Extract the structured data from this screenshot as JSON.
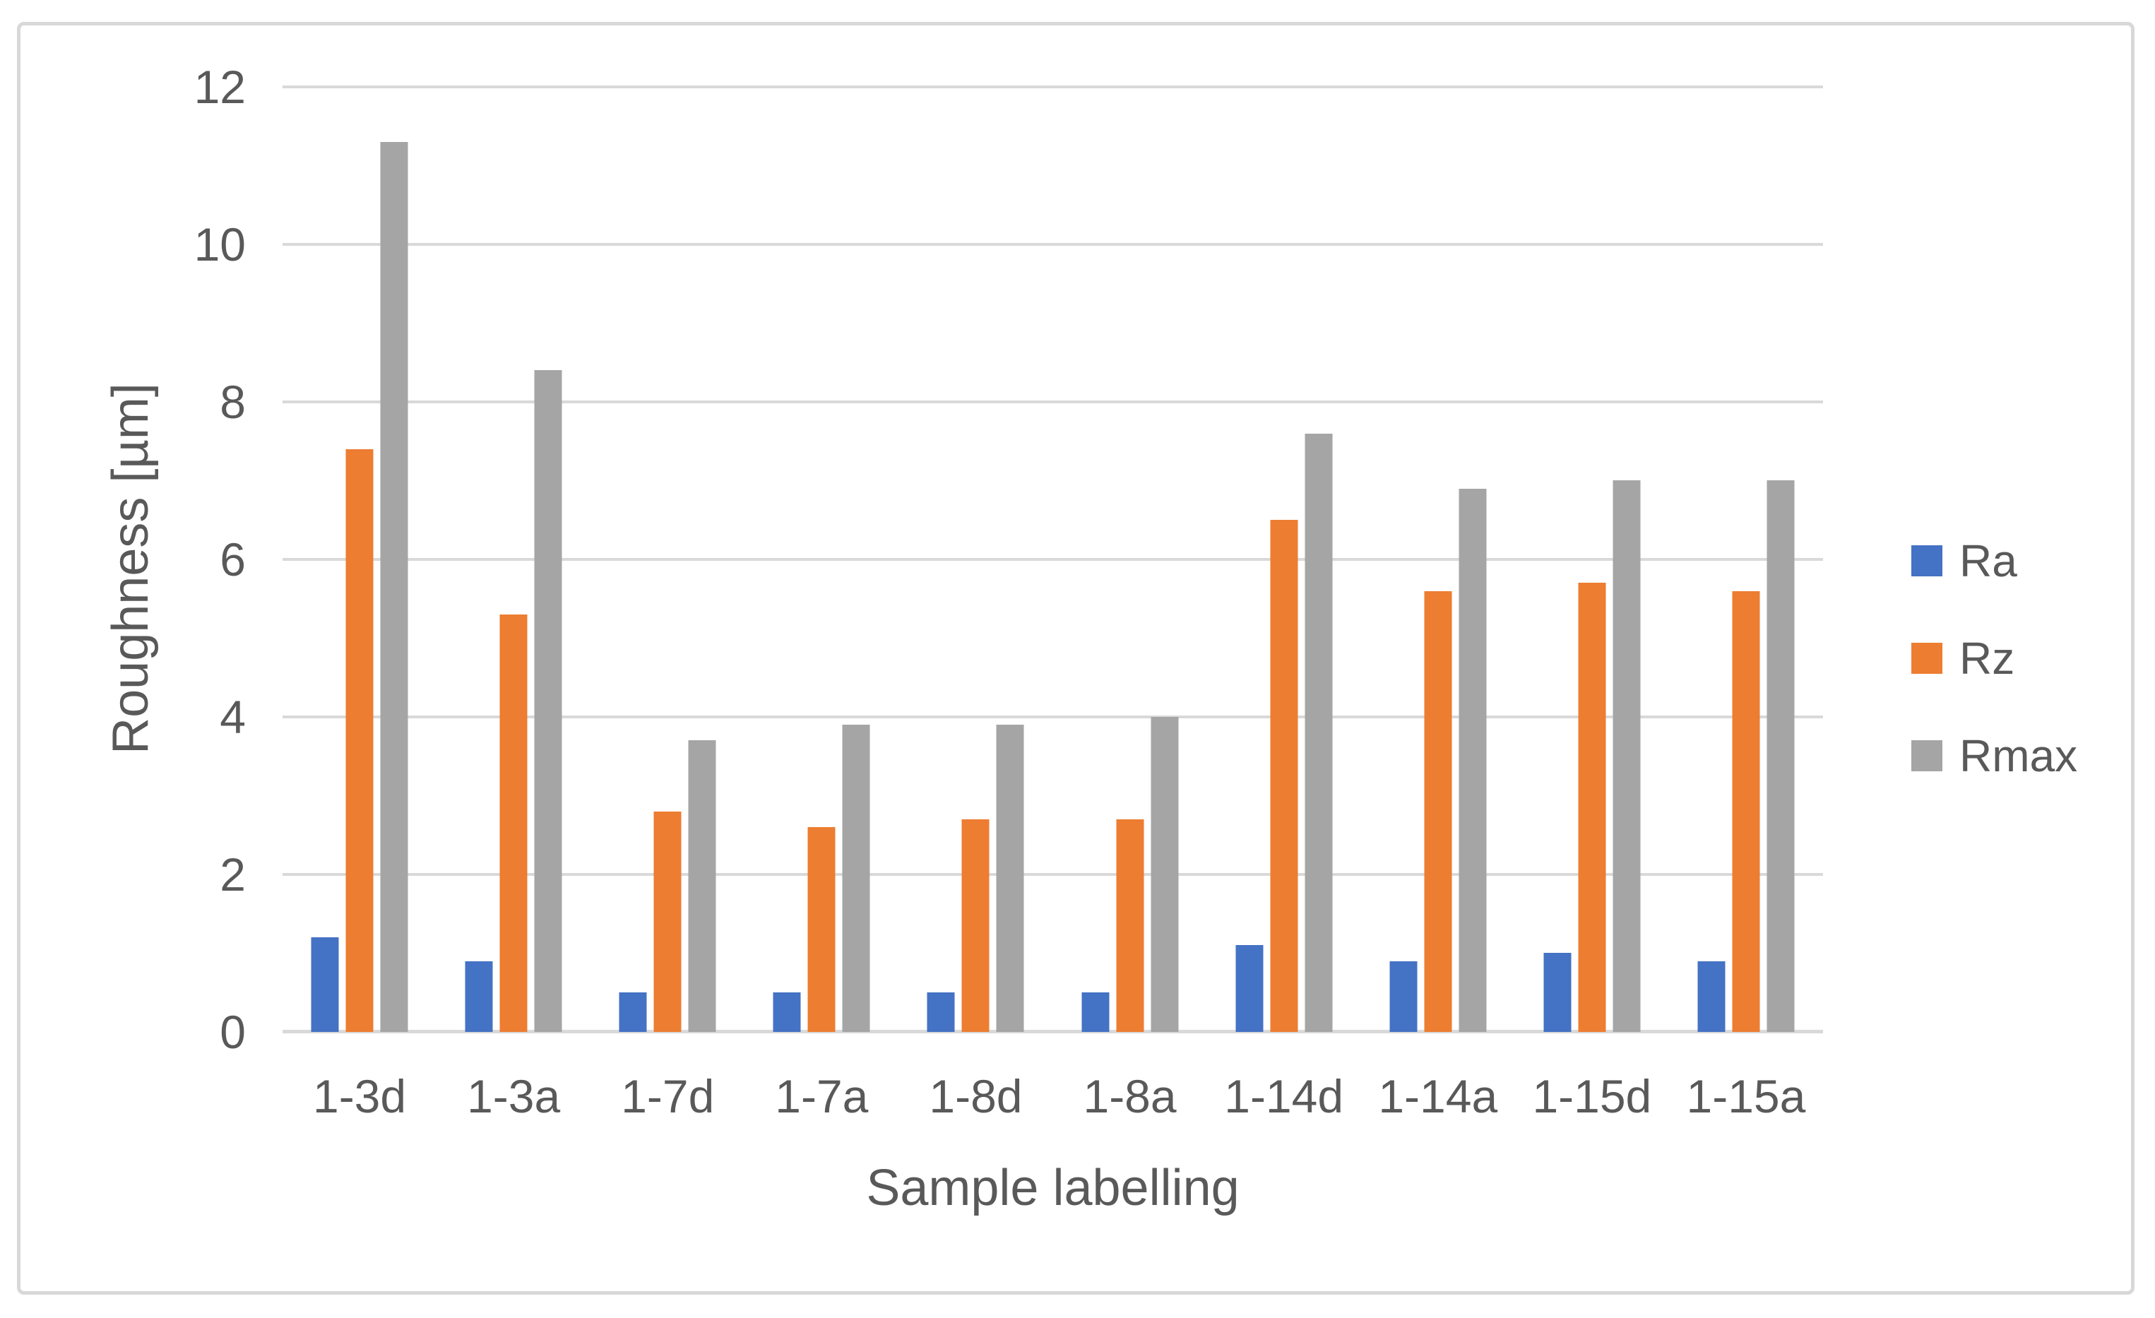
{
  "chart_data": {
    "type": "bar",
    "title": "",
    "xlabel": "Sample labelling",
    "ylabel": "Roughness [µm]",
    "ylim": [
      0,
      12
    ],
    "yticks": [
      0,
      2,
      4,
      6,
      8,
      10,
      12
    ],
    "grid": "horizontal-only",
    "legend_position": "right",
    "categories": [
      "1-3d",
      "1-3a",
      "1-7d",
      "1-7a",
      "1-8d",
      "1-8a",
      "1-14d",
      "1-14a",
      "1-15d",
      "1-15a"
    ],
    "series": [
      {
        "name": "Ra",
        "color": "#4472C4",
        "values": [
          1.2,
          0.9,
          0.5,
          0.5,
          0.5,
          0.5,
          1.1,
          0.9,
          1.0,
          0.9
        ]
      },
      {
        "name": "Rz",
        "color": "#ED7D31",
        "values": [
          7.4,
          5.3,
          2.8,
          2.6,
          2.7,
          2.7,
          6.5,
          5.6,
          5.7,
          5.6
        ]
      },
      {
        "name": "Rmax",
        "color": "#A5A5A5",
        "values": [
          11.3,
          8.4,
          3.7,
          3.9,
          3.9,
          4.0,
          7.6,
          6.9,
          7.0,
          7.0
        ]
      }
    ]
  },
  "style_colors": {
    "text": "#595959",
    "gridline": "#D9D9D9",
    "frame_border": "#D8D8D8"
  }
}
